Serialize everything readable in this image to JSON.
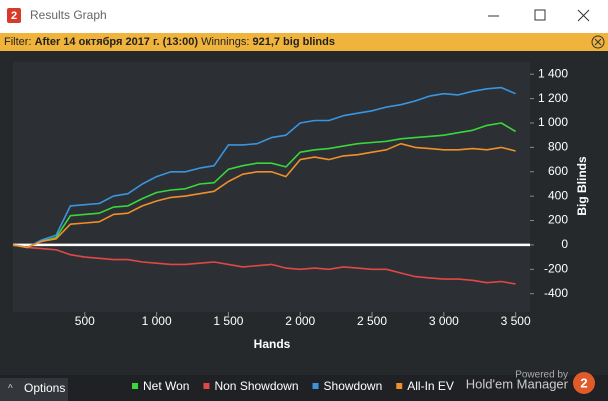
{
  "window": {
    "icon": "2",
    "title": "Results Graph"
  },
  "filter": {
    "label": "Filter:",
    "value": "After 14 октября 2017 г. (13:00)",
    "winnings_label": "Winnings:",
    "winnings": "921,7 big blinds"
  },
  "chart_data": {
    "type": "line",
    "xlabel": "Hands",
    "ylabel": "Big Blinds",
    "x": [
      0,
      100,
      200,
      300,
      400,
      500,
      600,
      700,
      800,
      900,
      1000,
      1100,
      1200,
      1300,
      1400,
      1500,
      1600,
      1700,
      1800,
      1900,
      2000,
      2100,
      2200,
      2300,
      2400,
      2500,
      2600,
      2700,
      2800,
      2900,
      3000,
      3100,
      3200,
      3300,
      3400,
      3500
    ],
    "series": [
      {
        "name": "Net Won",
        "color": "#3ad63c",
        "values": [
          0,
          -20,
          30,
          60,
          240,
          250,
          260,
          310,
          320,
          380,
          430,
          450,
          460,
          500,
          510,
          620,
          650,
          670,
          670,
          640,
          760,
          780,
          790,
          810,
          830,
          840,
          850,
          870,
          880,
          890,
          900,
          920,
          940,
          980,
          1000,
          930
        ]
      },
      {
        "name": "Non Showdown",
        "color": "#e04848",
        "values": [
          0,
          -20,
          -30,
          -40,
          -80,
          -100,
          -110,
          -120,
          -120,
          -140,
          -150,
          -160,
          -160,
          -150,
          -140,
          -160,
          -180,
          -170,
          -160,
          -190,
          -200,
          -190,
          -200,
          -180,
          -190,
          -200,
          -200,
          -230,
          -260,
          -270,
          -280,
          -280,
          -290,
          -310,
          -300,
          -320
        ]
      },
      {
        "name": "Showdown",
        "color": "#3a95e0",
        "values": [
          0,
          -20,
          40,
          80,
          320,
          330,
          340,
          400,
          420,
          500,
          560,
          600,
          600,
          630,
          650,
          820,
          820,
          830,
          880,
          900,
          1000,
          1020,
          1020,
          1060,
          1080,
          1100,
          1130,
          1150,
          1180,
          1220,
          1240,
          1230,
          1260,
          1280,
          1290,
          1240
        ]
      },
      {
        "name": "All-In EV",
        "color": "#f0902a",
        "values": [
          0,
          -20,
          30,
          50,
          170,
          180,
          190,
          250,
          260,
          320,
          360,
          390,
          400,
          420,
          440,
          520,
          580,
          600,
          600,
          560,
          700,
          720,
          700,
          730,
          740,
          760,
          780,
          830,
          800,
          790,
          780,
          780,
          790,
          780,
          800,
          770
        ]
      }
    ],
    "xlim": [
      0,
      3600
    ],
    "ylim": [
      -550,
      1500
    ],
    "xticks": [
      500,
      {
        "value": 1000,
        "label": "1 000"
      },
      {
        "value": 1500,
        "label": "1 500"
      },
      {
        "value": 2000,
        "label": "2 000"
      },
      {
        "value": 2500,
        "label": "2 500"
      },
      {
        "value": 3000,
        "label": "3 000"
      },
      {
        "value": 3500,
        "label": "3 500"
      }
    ],
    "yticks": [
      {
        "value": 1400,
        "label": "1 400"
      },
      {
        "value": 1200,
        "label": "1 200"
      },
      {
        "value": 1000,
        "label": "1 000"
      },
      800,
      600,
      400,
      200,
      0,
      -200,
      -400
    ],
    "y_axis_side": "right",
    "zero_line": true,
    "legend": "bottom"
  },
  "footer": {
    "options": "Options",
    "powered_by": "Powered by",
    "brand": "Hold'em Manager",
    "brand_icon": "2"
  }
}
